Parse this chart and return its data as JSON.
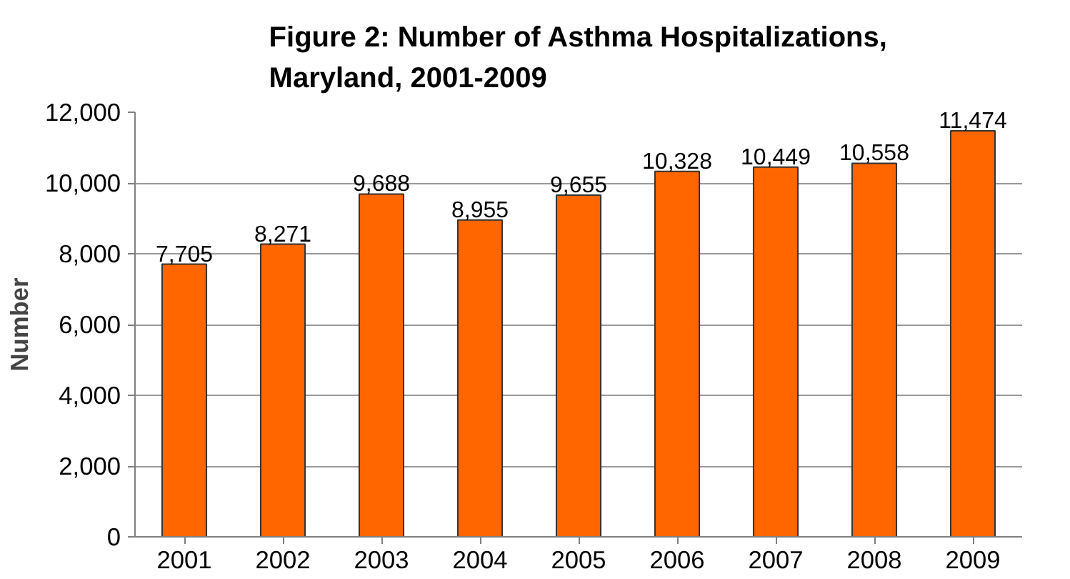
{
  "chart_data": {
    "type": "bar",
    "title": "Figure 2: Number of Asthma Hospitalizations,\nMaryland, 2001-2009",
    "ylabel": "Number",
    "categories": [
      "2001",
      "2002",
      "2003",
      "2004",
      "2005",
      "2006",
      "2007",
      "2008",
      "2009"
    ],
    "values": [
      7705,
      8271,
      9688,
      8955,
      9655,
      10328,
      10449,
      10558,
      11474
    ],
    "value_labels": [
      "7,705",
      "8,271",
      "9,688",
      "8,955",
      "9,655",
      "10,328",
      "10,449",
      "10,558",
      "11,474"
    ],
    "color": "#ff6600",
    "ylim": [
      0,
      12000
    ],
    "yticks": [
      {
        "value": 0,
        "label": "0"
      },
      {
        "value": 2000,
        "label": "2,000"
      },
      {
        "value": 4000,
        "label": "4,000"
      },
      {
        "value": 6000,
        "label": "6,000"
      },
      {
        "value": 8000,
        "label": "8,000"
      },
      {
        "value": 10000,
        "label": "10,000"
      },
      {
        "value": 12000,
        "label": "12,000"
      }
    ],
    "grid": "y"
  }
}
